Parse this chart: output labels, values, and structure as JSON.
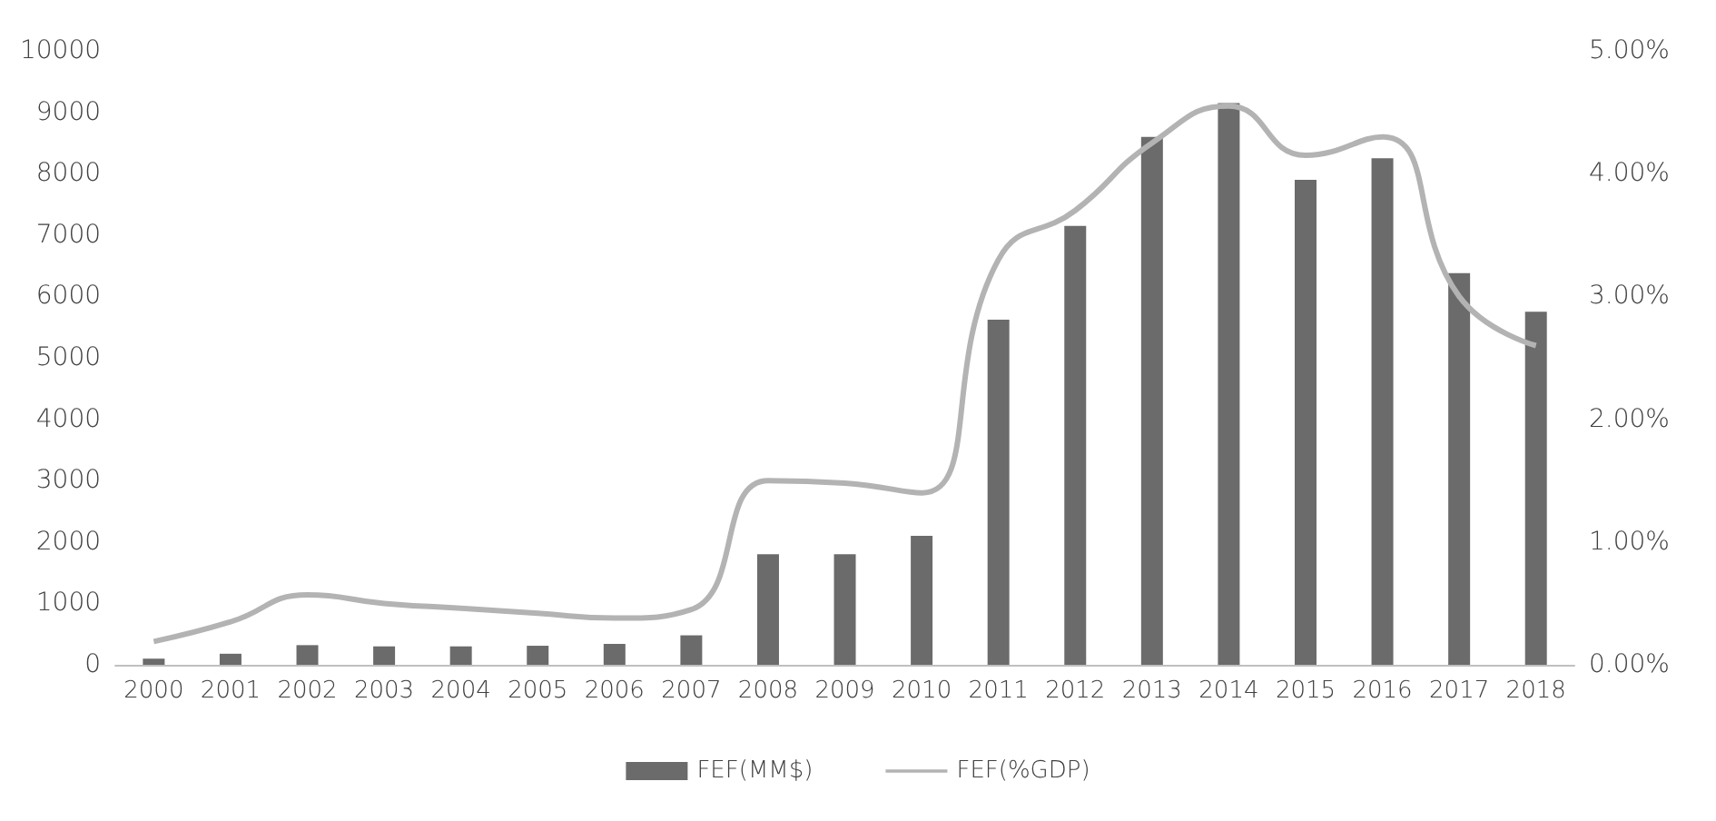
{
  "chart_data": {
    "type": "bar",
    "categories": [
      "2000",
      "2001",
      "2002",
      "2003",
      "2004",
      "2005",
      "2006",
      "2007",
      "2008",
      "2009",
      "2010",
      "2011",
      "2012",
      "2013",
      "2014",
      "2015",
      "2016",
      "2017",
      "2018"
    ],
    "series": [
      {
        "name": "FEF(MM$)",
        "color": "#6b6b6b",
        "values": [
          100,
          180,
          320,
          300,
          300,
          310,
          340,
          480,
          1800,
          1800,
          2100,
          5620,
          7150,
          8600,
          9150,
          7900,
          8250,
          6380,
          5750
        ]
      },
      {
        "name": "FEF(%GDP)",
        "type": "line",
        "axis": "y2",
        "color": "#b3b3b3",
        "values": [
          0.19,
          0.35,
          0.57,
          0.5,
          0.46,
          0.42,
          0.38,
          0.45,
          1.5,
          1.48,
          1.4,
          3.3,
          3.7,
          4.25,
          4.55,
          4.15,
          4.3,
          3.0,
          2.6
        ]
      }
    ],
    "ylim": [
      0,
      10000
    ],
    "yticks": [
      0,
      1000,
      2000,
      3000,
      4000,
      5000,
      6000,
      7000,
      8000,
      9000,
      10000
    ],
    "y2lim": [
      0,
      5
    ],
    "y2ticks": [
      {
        "value": 0,
        "label": "0.00%"
      },
      {
        "value": 1,
        "label": "1.00%"
      },
      {
        "value": 2,
        "label": "2.00%"
      },
      {
        "value": 3,
        "label": "3.00%"
      },
      {
        "value": 4,
        "label": "4.00%"
      },
      {
        "value": 5,
        "label": "5.00%"
      }
    ],
    "grid": false,
    "legend": "bottom",
    "marker": "none"
  }
}
